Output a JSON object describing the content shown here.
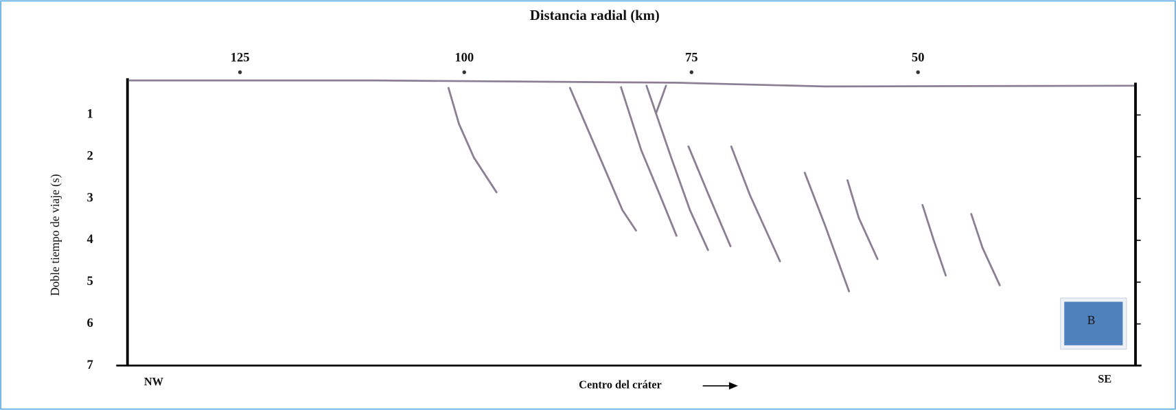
{
  "title": "Distancia radial (km)",
  "x_axis": {
    "ticks": [
      "125",
      "100",
      "75",
      "50"
    ]
  },
  "y_axis": {
    "title": "Doble tiempo de viaje (s)",
    "ticks": [
      "1",
      "2",
      "3",
      "4",
      "5",
      "6",
      "7"
    ]
  },
  "labels": {
    "left": "NW",
    "right": "SE",
    "bottom": "Centro del cráter"
  },
  "badge": "B"
}
